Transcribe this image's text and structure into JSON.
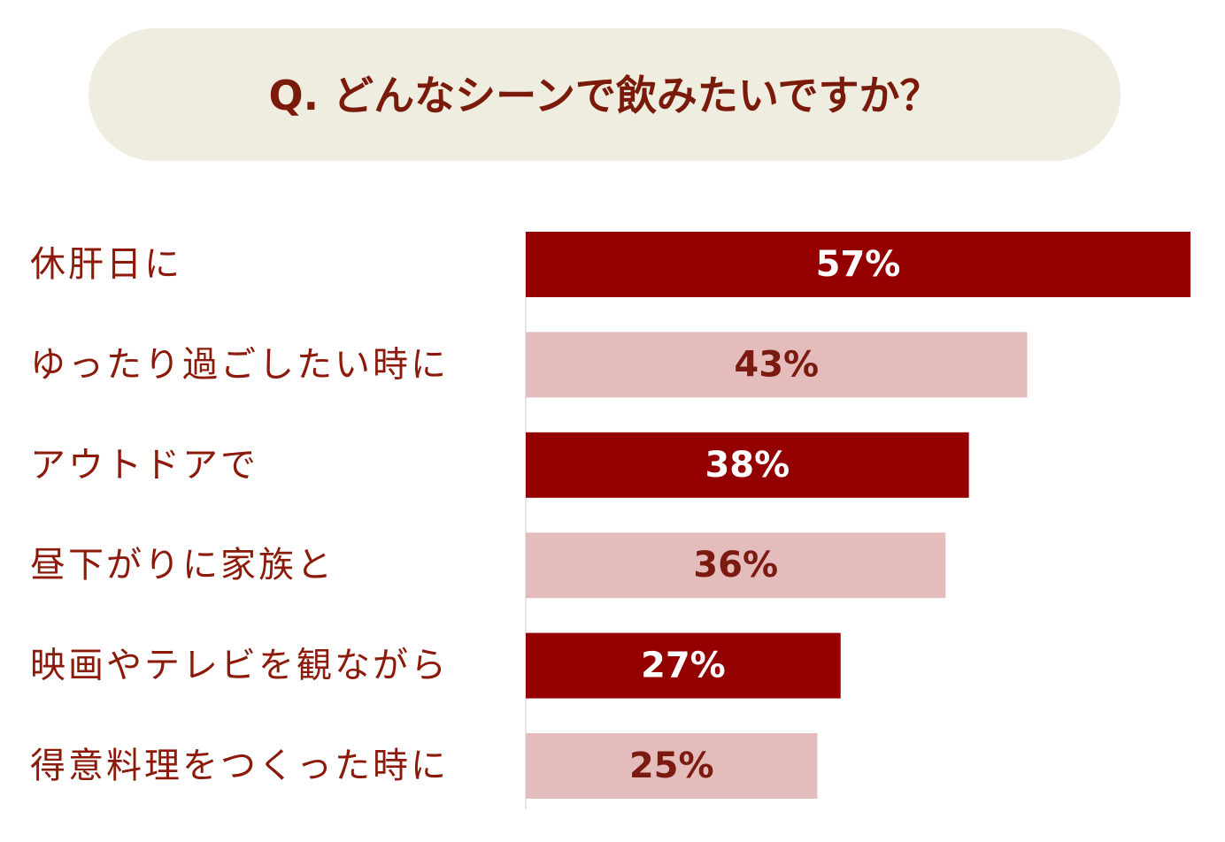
{
  "chart_data": {
    "type": "hbar",
    "title": "Q. どんなシーンで飲みたいですか？",
    "categories": [
      "休肝日に",
      "ゆったり過ごしたい時に",
      "アウトドアで",
      "昼下がりに家族と",
      "映画やテレビを観ながら",
      "得意料理をつくった時に"
    ],
    "values": [
      57,
      43,
      38,
      36,
      27,
      25
    ],
    "value_labels": [
      "57%",
      "43%",
      "38%",
      "36%",
      "27%",
      "25%"
    ],
    "colors": [
      "#940000",
      "#e4bcbc",
      "#940000",
      "#e4bcbc",
      "#940000",
      "#e4bcbc"
    ],
    "value_label_colors": [
      "#ffffff",
      "#7b1a10",
      "#ffffff",
      "#7b1a10",
      "#ffffff",
      "#7b1a10"
    ]
  }
}
